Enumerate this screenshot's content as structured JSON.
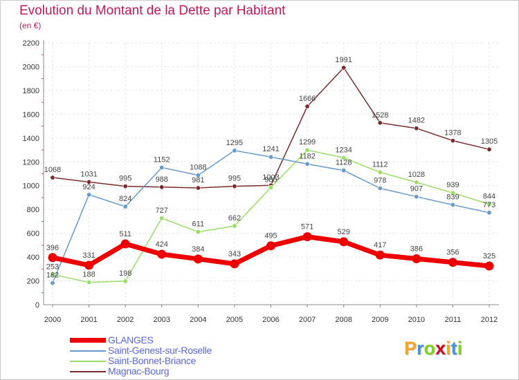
{
  "title": "Evolution du Montant de la Dette par Habitant",
  "subtitle": "(en €)",
  "logo": {
    "text": "Proxiti",
    "colors": [
      "#f5a623",
      "#4a90d9",
      "#7ed321",
      "#d0021b",
      "#f5a623",
      "#4a90d9",
      "#7ed321"
    ]
  },
  "chart_data": {
    "type": "line",
    "x": [
      "2000",
      "2001",
      "2002",
      "2003",
      "2004",
      "2005",
      "2006",
      "2007",
      "2008",
      "2009",
      "2010",
      "2011",
      "2012"
    ],
    "ylim": [
      0,
      2200
    ],
    "yticks": [
      "0",
      "200",
      "400",
      "600",
      "800",
      "1000",
      "1200",
      "1400",
      "1600",
      "1800",
      "2000",
      "2200"
    ],
    "grid": true,
    "legend_position": "bottom-left",
    "series": [
      {
        "name": "GLANGES",
        "color": "#ee0000",
        "width": 7,
        "values": [
          396,
          331,
          511,
          424,
          384,
          343,
          495,
          571,
          529,
          417,
          386,
          356,
          325
        ]
      },
      {
        "name": "Saint-Genest-sur-Roselle",
        "color": "#6699cc",
        "width": 1.5,
        "values": [
          182,
          924,
          824,
          1152,
          1088,
          1295,
          1241,
          1182,
          1128,
          978,
          907,
          839,
          773
        ]
      },
      {
        "name": "Saint-Bonnet-Briance",
        "color": "#99dd66",
        "width": 1.5,
        "values": [
          253,
          188,
          198,
          727,
          611,
          662,
          985,
          1299,
          1234,
          1112,
          1028,
          939,
          844
        ]
      },
      {
        "name": "Magnac-Bourg",
        "color": "#7a2b2b",
        "width": 1.5,
        "values": [
          1068,
          1031,
          995,
          988,
          981,
          995,
          1003,
          1666,
          1991,
          1528,
          1482,
          1378,
          1305
        ]
      }
    ]
  }
}
